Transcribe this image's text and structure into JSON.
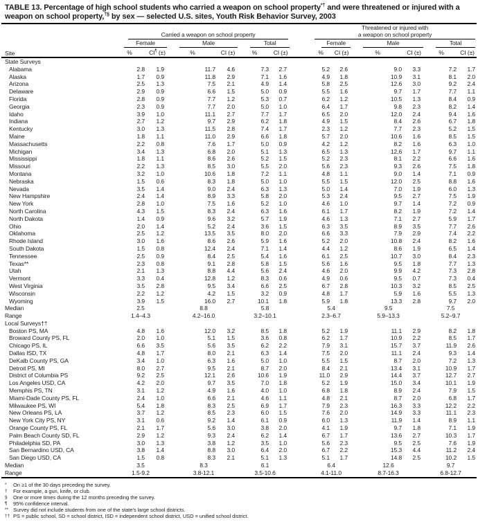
{
  "title": {
    "part1": "TABLE 13. Percentage of high school students who carried a weapon on school property",
    "sup1": "*†",
    "part2": " and were threatened or injured with a weapon on school property,",
    "sup2": "†§",
    "part3": " by sex — selected U.S. sites, Youth Risk Behavior Survey, 2003"
  },
  "columns": {
    "site": "Site",
    "group1": "Carried a weapon on school property",
    "group2_line1": "Threatened or injured with",
    "group2_line2": "a weapon on school property",
    "sex": [
      "Female",
      "Male",
      "Total"
    ],
    "pct": "%",
    "ci": "CI",
    "ci_marker": "¶",
    "ci_pm": " (±)",
    "ci_full": "CI (±)"
  },
  "sections": [
    {
      "label": "State Surveys",
      "rows": [
        {
          "site": "Alabama",
          "values": [
            "2.8",
            "1.9",
            "11.7",
            "4.6",
            "7.3",
            "2.7",
            "5.2",
            "2.6",
            "9.0",
            "3.3",
            "7.2",
            "1.7"
          ]
        },
        {
          "site": "Alaska",
          "values": [
            "1.7",
            "0.9",
            "11.8",
            "2.9",
            "7.1",
            "1.6",
            "4.9",
            "1.8",
            "10.9",
            "3.1",
            "8.1",
            "2.0"
          ]
        },
        {
          "site": "Arizona",
          "values": [
            "2.5",
            "1.3",
            "7.5",
            "2.1",
            "4.9",
            "1.4",
            "5.8",
            "2.5",
            "12.6",
            "3.0",
            "9.2",
            "2.4"
          ]
        },
        {
          "site": "Delaware",
          "values": [
            "2.9",
            "0.9",
            "6.6",
            "1.5",
            "5.0",
            "0.9",
            "5.5",
            "1.6",
            "9.7",
            "1.7",
            "7.7",
            "1.1"
          ]
        },
        {
          "site": "Florida",
          "values": [
            "2.8",
            "0.9",
            "7.7",
            "1.2",
            "5.3",
            "0.7",
            "6.2",
            "1.2",
            "10.5",
            "1.3",
            "8.4",
            "0.9"
          ]
        },
        {
          "site": "Georgia",
          "values": [
            "2.3",
            "0.9",
            "7.7",
            "2.0",
            "5.0",
            "1.0",
            "6.4",
            "1.7",
            "9.8",
            "2.3",
            "8.2",
            "1.4"
          ]
        },
        {
          "site": "Idaho",
          "values": [
            "3.9",
            "1.0",
            "11.1",
            "2.7",
            "7.7",
            "1.7",
            "6.5",
            "2.0",
            "12.0",
            "2.4",
            "9.4",
            "1.6"
          ]
        },
        {
          "site": "Indiana",
          "values": [
            "2.7",
            "1.2",
            "9.7",
            "2.9",
            "6.2",
            "1.8",
            "4.9",
            "1.5",
            "8.4",
            "2.6",
            "6.7",
            "1.8"
          ]
        },
        {
          "site": "Kentucky",
          "values": [
            "3.0",
            "1.3",
            "11.5",
            "2.8",
            "7.4",
            "1.7",
            "2.3",
            "1.2",
            "7.7",
            "2.3",
            "5.2",
            "1.5"
          ]
        },
        {
          "site": "Maine",
          "values": [
            "1.8",
            "1.1",
            "11.0",
            "2.9",
            "6.6",
            "1.8",
            "5.7",
            "2.0",
            "10.6",
            "1.6",
            "8.5",
            "1.5"
          ]
        },
        {
          "site": "Massachusetts",
          "values": [
            "2.2",
            "0.8",
            "7.6",
            "1.7",
            "5.0",
            "0.9",
            "4.2",
            "1.2",
            "8.2",
            "1.6",
            "6.3",
            "1.0"
          ]
        },
        {
          "site": "Michigan",
          "values": [
            "3.4",
            "1.3",
            "6.8",
            "2.0",
            "5.1",
            "1.3",
            "6.5",
            "1.3",
            "12.6",
            "1.7",
            "9.7",
            "1.1"
          ]
        },
        {
          "site": "Mississippi",
          "values": [
            "1.8",
            "1.1",
            "8.6",
            "2.6",
            "5.2",
            "1.5",
            "5.2",
            "2.3",
            "8.1",
            "2.2",
            "6.6",
            "1.6"
          ]
        },
        {
          "site": "Missouri",
          "values": [
            "2.2",
            "1.3",
            "8.5",
            "3.0",
            "5.5",
            "2.0",
            "5.6",
            "2.3",
            "9.3",
            "2.6",
            "7.5",
            "1.8"
          ]
        },
        {
          "site": "Montana",
          "values": [
            "3.2",
            "1.0",
            "10.6",
            "1.8",
            "7.2",
            "1.1",
            "4.8",
            "1.1",
            "9.0",
            "1.4",
            "7.1",
            "0.9"
          ]
        },
        {
          "site": "Nebraska",
          "values": [
            "1.5",
            "0.6",
            "8.3",
            "1.8",
            "5.0",
            "1.0",
            "5.5",
            "1.5",
            "12.0",
            "2.5",
            "8.8",
            "1.6"
          ]
        },
        {
          "site": "Nevada",
          "values": [
            "3.5",
            "1.4",
            "9.0",
            "2.4",
            "6.3",
            "1.3",
            "5.0",
            "1.4",
            "7.0",
            "1.9",
            "6.0",
            "1.3"
          ]
        },
        {
          "site": "New Hampshire",
          "values": [
            "2.4",
            "1.4",
            "8.9",
            "3.3",
            "5.8",
            "2.0",
            "5.3",
            "2.4",
            "9.5",
            "2.7",
            "7.5",
            "1.9"
          ]
        },
        {
          "site": "New York",
          "values": [
            "2.8",
            "1.0",
            "7.5",
            "1.6",
            "5.2",
            "1.0",
            "4.6",
            "1.0",
            "9.7",
            "1.4",
            "7.2",
            "0.9"
          ]
        },
        {
          "site": "North Carolina",
          "values": [
            "4.3",
            "1.5",
            "8.3",
            "2.4",
            "6.3",
            "1.6",
            "6.1",
            "1.7",
            "8.2",
            "1.9",
            "7.2",
            "1.4"
          ]
        },
        {
          "site": "North Dakota",
          "values": [
            "1.4",
            "0.9",
            "9.6",
            "3.2",
            "5.7",
            "1.9",
            "4.6",
            "1.3",
            "7.1",
            "2.7",
            "5.9",
            "1.7"
          ]
        },
        {
          "site": "Ohio",
          "values": [
            "2.0",
            "1.4",
            "5.2",
            "2.4",
            "3.6",
            "1.5",
            "6.3",
            "3.5",
            "8.9",
            "3.5",
            "7.7",
            "2.6"
          ]
        },
        {
          "site": "Oklahoma",
          "values": [
            "2.5",
            "1.2",
            "13.5",
            "3.5",
            "8.0",
            "2.0",
            "6.6",
            "3.3",
            "7.9",
            "2.9",
            "7.4",
            "2.2"
          ]
        },
        {
          "site": "Rhode Island",
          "values": [
            "3.0",
            "1.6",
            "8.6",
            "2.6",
            "5.9",
            "1.6",
            "5.2",
            "2.0",
            "10.8",
            "2.4",
            "8.2",
            "1.6"
          ]
        },
        {
          "site": "South Dakota",
          "values": [
            "1.5",
            "0.8",
            "12.4",
            "2.4",
            "7.1",
            "1.4",
            "4.4",
            "1.2",
            "8.6",
            "1.9",
            "6.5",
            "1.4"
          ]
        },
        {
          "site": "Tennessee",
          "values": [
            "2.5",
            "0.9",
            "8.4",
            "2.5",
            "5.4",
            "1.6",
            "6.1",
            "2.5",
            "10.7",
            "3.0",
            "8.4",
            "2.3"
          ]
        },
        {
          "site": "Texas**",
          "values": [
            "2.3",
            "0.8",
            "9.1",
            "2.8",
            "5.8",
            "1.5",
            "5.6",
            "1.6",
            "9.5",
            "1.8",
            "7.7",
            "1.3"
          ]
        },
        {
          "site": "Utah",
          "values": [
            "2.1",
            "1.3",
            "8.8",
            "4.4",
            "5.6",
            "2.4",
            "4.6",
            "2.0",
            "9.9",
            "4.2",
            "7.3",
            "2.8"
          ]
        },
        {
          "site": "Vermont",
          "values": [
            "3.3",
            "0.4",
            "12.8",
            "1.2",
            "8.3",
            "0.6",
            "4.9",
            "0.6",
            "9.5",
            "0.7",
            "7.3",
            "0.4"
          ]
        },
        {
          "site": "West Virginia",
          "values": [
            "3.5",
            "2.8",
            "9.5",
            "3.4",
            "6.6",
            "2.5",
            "6.7",
            "2.8",
            "10.3",
            "3.2",
            "8.5",
            "2.5"
          ]
        },
        {
          "site": "Wisconsin",
          "values": [
            "2.2",
            "1.2",
            "4.2",
            "1.5",
            "3.2",
            "0.9",
            "4.8",
            "1.7",
            "5.9",
            "1.6",
            "5.5",
            "1.3"
          ]
        },
        {
          "site": "Wyoming",
          "values": [
            "3.9",
            "1.5",
            "16.0",
            "2.7",
            "10.1",
            "1.8",
            "5.9",
            "1.8",
            "13.3",
            "2.8",
            "9.7",
            "2.0"
          ]
        }
      ],
      "median": {
        "label": "Median",
        "values": [
          "2.5",
          "8.8",
          "5.8",
          "5.4",
          "9.5",
          "7.5"
        ]
      },
      "range": {
        "label": "Range",
        "values": [
          "1.4–4.3",
          "4.2–16.0",
          "3.2–10.1",
          "2.3–6.7",
          "5.9–13.3",
          "5.2–9.7"
        ]
      }
    },
    {
      "label": "Local Surveys††",
      "rows": [
        {
          "site": "Boston PS, MA",
          "values": [
            "4.8",
            "1.6",
            "12.0",
            "3.2",
            "8.5",
            "1.8",
            "5.2",
            "1.9",
            "11.1",
            "2.9",
            "8.2",
            "1.8"
          ]
        },
        {
          "site": "Broward County PS, FL",
          "values": [
            "2.0",
            "1.0",
            "5.1",
            "1.5",
            "3.6",
            "0.8",
            "6.2",
            "1.7",
            "10.9",
            "2.2",
            "8.5",
            "1.7"
          ]
        },
        {
          "site": "Chicago PS, IL",
          "values": [
            "6.6",
            "3.5",
            "5.6",
            "3.5",
            "6.2",
            "2.2",
            "7.9",
            "3.1",
            "15.7",
            "3.7",
            "11.9",
            "2.6"
          ]
        },
        {
          "site": "Dallas ISD, TX",
          "values": [
            "4.8",
            "1.7",
            "8.0",
            "2.1",
            "6.3",
            "1.4",
            "7.5",
            "2.0",
            "11.1",
            "2.4",
            "9.3",
            "1.4"
          ]
        },
        {
          "site": "DeKalb County PS, GA",
          "values": [
            "3.4",
            "1.0",
            "6.3",
            "1.6",
            "5.0",
            "1.0",
            "5.5",
            "1.5",
            "8.7",
            "2.0",
            "7.2",
            "1.3"
          ]
        },
        {
          "site": "Detroit PS, MI",
          "values": [
            "8.0",
            "2.7",
            "9.5",
            "2.1",
            "8.7",
            "2.0",
            "8.4",
            "2.1",
            "13.4",
            "3.1",
            "10.9",
            "1.7"
          ]
        },
        {
          "site": "District of Columbia PS",
          "values": [
            "9.2",
            "2.5",
            "12.1",
            "2.6",
            "10.6",
            "1.9",
            "11.0",
            "2.9",
            "14.4",
            "3.7",
            "12.7",
            "2.7"
          ]
        },
        {
          "site": "Los Angeles USD, CA",
          "values": [
            "4.2",
            "2.0",
            "9.7",
            "3.5",
            "7.0",
            "1.8",
            "5.2",
            "1.9",
            "15.0",
            "3.4",
            "10.1",
            "1.9"
          ]
        },
        {
          "site": "Memphis PS, TN",
          "values": [
            "3.1",
            "1.2",
            "4.9",
            "1.6",
            "4.0",
            "1.0",
            "6.8",
            "1.8",
            "8.9",
            "2.4",
            "7.9",
            "1.5"
          ]
        },
        {
          "site": "Miami-Dade County PS, FL",
          "values": [
            "2.4",
            "1.0",
            "6.6",
            "2.1",
            "4.6",
            "1.1",
            "4.8",
            "2.1",
            "8.7",
            "2.0",
            "6.8",
            "1.7"
          ]
        },
        {
          "site": "Milwaukee PS, WI",
          "values": [
            "5.4",
            "1.8",
            "8.3",
            "2.5",
            "6.9",
            "1.7",
            "7.9",
            "2.3",
            "16.3",
            "3.3",
            "12.2",
            "2.2"
          ]
        },
        {
          "site": "New Orleans PS, LA",
          "values": [
            "3.7",
            "1.2",
            "8.5",
            "2.3",
            "6.0",
            "1.5",
            "7.6",
            "2.0",
            "14.9",
            "3.3",
            "11.1",
            "2.3"
          ]
        },
        {
          "site": "New York City PS, NY",
          "values": [
            "3.1",
            "0.6",
            "9.2",
            "1.4",
            "6.1",
            "0.9",
            "6.0",
            "1.3",
            "11.9",
            "1.4",
            "8.9",
            "1.1"
          ]
        },
        {
          "site": "Orange County PS, FL",
          "values": [
            "2.1",
            "1.7",
            "5.6",
            "3.0",
            "3.8",
            "2.0",
            "4.1",
            "1.9",
            "9.7",
            "1.8",
            "7.1",
            "1.9"
          ]
        },
        {
          "site": "Palm Beach County SD, FL",
          "values": [
            "2.9",
            "1.2",
            "9.3",
            "2.4",
            "6.2",
            "1.4",
            "6.7",
            "1.7",
            "13.6",
            "2.7",
            "10.3",
            "1.7"
          ]
        },
        {
          "site": "Philadelphia SD, PA",
          "values": [
            "3.0",
            "1.3",
            "3.8",
            "1.2",
            "3.5",
            "1.0",
            "5.6",
            "2.3",
            "9.5",
            "2.5",
            "7.6",
            "1.9"
          ]
        },
        {
          "site": "San Bernardino USD, CA",
          "values": [
            "3.8",
            "1.4",
            "8.8",
            "3.0",
            "6.4",
            "2.0",
            "6.7",
            "2.2",
            "15.3",
            "4.4",
            "11.2",
            "2.4"
          ]
        },
        {
          "site": "San Diego USD, CA",
          "values": [
            "1.5",
            "0.8",
            "8.3",
            "2.1",
            "5.1",
            "1.3",
            "5.1",
            "1.7",
            "14.8",
            "2.5",
            "10.2",
            "1.5"
          ]
        }
      ],
      "median": {
        "label": "Median",
        "values": [
          "3.5",
          "8.3",
          "6.1",
          "6.4",
          "12.6",
          "9.7"
        ]
      },
      "range": {
        "label": "Range",
        "values": [
          "1.5-9.2",
          "3.8-12.1",
          "3.5-10.6",
          "4.1-11.0",
          "8.7-16.3",
          "6.8-12.7"
        ]
      }
    }
  ],
  "footnotes": [
    {
      "marker": "*",
      "text": "On ≥1 of the 30 days preceding the survey."
    },
    {
      "marker": "†",
      "text": "For example, a gun, knife, or club."
    },
    {
      "marker": "§",
      "text": "One or more times during the 12 months preceding the survey."
    },
    {
      "marker": "¶",
      "text": "95% confidence interval."
    },
    {
      "marker": "**",
      "text": "Survey did not include students from one of the state's large school districts."
    },
    {
      "marker": "††",
      "text": "PS = public school, SD = school district, ISD = independent school district, USD = unified school district."
    }
  ]
}
